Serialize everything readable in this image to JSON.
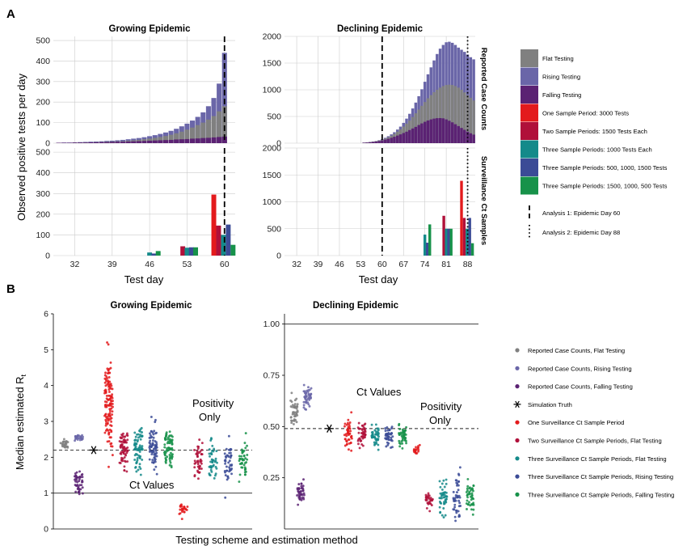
{
  "panel_labels": {
    "a": "A",
    "b": "B"
  },
  "titles": {
    "growing": "Growing Epidemic",
    "declining": "Declining Epidemic"
  },
  "strip_labels": {
    "top": "Reported Case Counts",
    "bottom": "Surveillance Ct Samples"
  },
  "axis_labels": {
    "a_y": "Observed positive tests per day",
    "a_x": "Test day",
    "b_y": "Median estimated R",
    "b_y_sub": "t",
    "b_x": "Testing scheme and estimation method"
  },
  "annotations": {
    "ct_values": "Ct Values",
    "positivity_line1": "Positivity",
    "positivity_line2": "Only"
  },
  "legend_a": {
    "items": [
      {
        "label": "Flat Testing",
        "color": "#808080"
      },
      {
        "label": "Rising Testing",
        "color": "#6a66a8"
      },
      {
        "label": "Falling Testing",
        "color": "#5b2273"
      },
      {
        "label": "One Sample Period: 3000 Tests",
        "color": "#e31a1c"
      },
      {
        "label": "Two Sample Periods: 1500 Tests Each",
        "color": "#b0103a"
      },
      {
        "label": "Three Sample Periods: 1000 Tests Each",
        "color": "#148a8a"
      },
      {
        "label": "Three Sample Periods: 500, 1000, 1500 Tests",
        "color": "#3b4b96"
      },
      {
        "label": "Three Sample Periods: 1500, 1000, 500 Tests",
        "color": "#17924a"
      }
    ],
    "lines": [
      {
        "label": "Analysis 1: Epidemic Day 60",
        "style": "dashed"
      },
      {
        "label": "Analysis 2: Epidemic Day 88",
        "style": "dotted"
      }
    ]
  },
  "legend_b": {
    "items": [
      {
        "label": "Reported Case Counts, Flat Testing",
        "color": "#808080",
        "marker": "dot"
      },
      {
        "label": "Reported Case Counts, Rising Testing",
        "color": "#6a66a8",
        "marker": "dot"
      },
      {
        "label": "Reported Case Counts, Falling Testing",
        "color": "#5b2273",
        "marker": "dot"
      },
      {
        "label": "Simulation Truth",
        "color": "#000000",
        "marker": "asterisk"
      },
      {
        "label": "One Surveillance Ct Sample Period",
        "color": "#e31a1c",
        "marker": "dot"
      },
      {
        "label": "Two Surveillance Ct Sample Periods, Flat Testing",
        "color": "#b0103a",
        "marker": "dot"
      },
      {
        "label": "Three Surveillance Ct Sample Periods, Flat Testing",
        "color": "#148a8a",
        "marker": "dot"
      },
      {
        "label": "Three Surveillance Ct Sample Periods, Rising Testing",
        "color": "#3b4b96",
        "marker": "dot"
      },
      {
        "label": "Three Surveillance Ct Sample Periods, Falling Testing",
        "color": "#17924a",
        "marker": "dot"
      }
    ]
  },
  "chart_data": [
    {
      "id": "A-growing-case-counts",
      "type": "bar",
      "title": "Growing Epidemic",
      "xlim": [
        28,
        62
      ],
      "ylim": [
        0,
        520
      ],
      "xticks": [
        32,
        39,
        46,
        53,
        60
      ],
      "yticks": [
        0,
        100,
        200,
        300,
        400,
        500
      ],
      "vline": {
        "x": 60,
        "style": "dashed"
      },
      "days": [
        29,
        30,
        31,
        32,
        33,
        34,
        35,
        36,
        37,
        38,
        39,
        40,
        41,
        42,
        43,
        44,
        45,
        46,
        47,
        48,
        49,
        50,
        51,
        52,
        53,
        54,
        55,
        56,
        57,
        58,
        59,
        60
      ],
      "series": [
        {
          "name": "Rising Testing",
          "values": [
            2,
            3,
            3,
            4,
            5,
            6,
            7,
            8,
            9,
            11,
            12,
            14,
            16,
            19,
            22,
            25,
            29,
            34,
            39,
            45,
            52,
            60,
            70,
            82,
            95,
            110,
            128,
            150,
            180,
            220,
            290,
            440
          ]
        },
        {
          "name": "Flat Testing",
          "values": [
            2,
            2,
            2,
            3,
            3,
            4,
            4,
            5,
            6,
            7,
            8,
            9,
            10,
            12,
            14,
            16,
            19,
            22,
            26,
            30,
            35,
            41,
            48,
            56,
            66,
            76,
            88,
            100,
            115,
            132,
            155,
            180
          ]
        },
        {
          "name": "Falling Testing",
          "values": [
            2,
            2,
            2,
            3,
            3,
            3,
            4,
            4,
            5,
            5,
            6,
            7,
            7,
            8,
            9,
            10,
            11,
            12,
            13,
            14,
            15,
            16,
            18,
            19,
            20,
            22,
            23,
            25,
            26,
            28,
            30,
            32
          ]
        }
      ]
    },
    {
      "id": "A-growing-ct-samples",
      "type": "bar",
      "xlim": [
        28,
        62
      ],
      "ylim": [
        0,
        520
      ],
      "xticks": [
        32,
        39,
        46,
        53,
        60
      ],
      "yticks": [
        0,
        100,
        200,
        300,
        400,
        500
      ],
      "xlabel": "Test day",
      "vline": {
        "x": 60,
        "style": "dashed"
      },
      "bars": [
        {
          "x": 46.0,
          "series": "Three Sample Periods: 1000 Tests Each",
          "value": 15
        },
        {
          "x": 46.8,
          "series": "Three Sample Periods: 500, 1000, 1500 Tests",
          "value": 10
        },
        {
          "x": 47.6,
          "series": "Three Sample Periods: 1500, 1000, 500 Tests",
          "value": 22
        },
        {
          "x": 52.2,
          "series": "Two Sample Periods: 1500 Tests Each",
          "value": 45
        },
        {
          "x": 53.0,
          "series": "Three Sample Periods: 1000 Tests Each",
          "value": 38
        },
        {
          "x": 53.8,
          "series": "Three Sample Periods: 500, 1000, 1500 Tests",
          "value": 40
        },
        {
          "x": 54.6,
          "series": "Three Sample Periods: 1500, 1000, 500 Tests",
          "value": 40
        },
        {
          "x": 58.0,
          "series": "One Sample Period: 3000 Tests",
          "value": 295
        },
        {
          "x": 58.9,
          "series": "Two Sample Periods: 1500 Tests Each",
          "value": 145
        },
        {
          "x": 59.8,
          "series": "Three Sample Periods: 1000 Tests Each",
          "value": 100
        },
        {
          "x": 60.7,
          "series": "Three Sample Periods: 500, 1000, 1500 Tests",
          "value": 150
        },
        {
          "x": 61.6,
          "series": "Three Sample Periods: 1500, 1000, 500 Tests",
          "value": 52
        }
      ]
    },
    {
      "id": "A-declining-case-counts",
      "type": "bar",
      "title": "Declining Epidemic",
      "xlim": [
        28,
        90.5
      ],
      "ylim": [
        0,
        2000
      ],
      "xticks": [
        32,
        39,
        46,
        53,
        60,
        67,
        74,
        81,
        88
      ],
      "yticks": [
        0,
        500,
        1000,
        1500,
        2000
      ],
      "vlines": [
        {
          "x": 60,
          "style": "dashed"
        },
        {
          "x": 88,
          "style": "dotted"
        }
      ],
      "strip": "Reported Case Counts",
      "days": [
        54,
        55,
        56,
        57,
        58,
        59,
        60,
        61,
        62,
        63,
        64,
        65,
        66,
        67,
        68,
        69,
        70,
        71,
        72,
        73,
        74,
        75,
        76,
        77,
        78,
        79,
        80,
        81,
        82,
        83,
        84,
        85,
        86,
        87,
        88,
        89,
        90
      ],
      "series": [
        {
          "name": "Rising Testing",
          "values": [
            10,
            15,
            22,
            30,
            40,
            55,
            75,
            100,
            130,
            165,
            205,
            255,
            310,
            380,
            460,
            550,
            650,
            760,
            880,
            1010,
            1150,
            1290,
            1420,
            1550,
            1670,
            1770,
            1840,
            1890,
            1900,
            1880,
            1840,
            1790,
            1750,
            1710,
            1660,
            1610,
            1570
          ]
        },
        {
          "name": "Flat Testing",
          "values": [
            10,
            14,
            20,
            28,
            38,
            50,
            65,
            85,
            110,
            140,
            175,
            215,
            260,
            310,
            365,
            425,
            490,
            560,
            630,
            700,
            770,
            840,
            900,
            955,
            1000,
            1040,
            1070,
            1090,
            1095,
            1090,
            1070,
            1040,
            1000,
            950,
            900,
            850,
            800
          ]
        },
        {
          "name": "Falling Testing",
          "values": [
            8,
            12,
            17,
            23,
            30,
            40,
            52,
            66,
            82,
            100,
            120,
            142,
            165,
            190,
            215,
            245,
            275,
            305,
            340,
            370,
            400,
            425,
            445,
            460,
            468,
            470,
            465,
            445,
            420,
            390,
            355,
            320,
            285,
            250,
            215,
            185,
            160
          ]
        }
      ]
    },
    {
      "id": "A-declining-ct-samples",
      "type": "bar",
      "xlim": [
        28,
        90.5
      ],
      "ylim": [
        0,
        2000
      ],
      "xticks": [
        32,
        39,
        46,
        53,
        60,
        67,
        74,
        81,
        88
      ],
      "yticks": [
        0,
        500,
        1000,
        1500,
        2000
      ],
      "xlabel": "Test day",
      "vlines": [
        {
          "x": 60,
          "style": "dashed"
        },
        {
          "x": 88,
          "style": "dotted"
        }
      ],
      "strip": "Surveillance Ct Samples",
      "bars": [
        {
          "x": 74.0,
          "series": "Three Sample Periods: 1000 Tests Each",
          "value": 390
        },
        {
          "x": 74.8,
          "series": "Three Sample Periods: 500, 1000, 1500 Tests",
          "value": 240
        },
        {
          "x": 75.6,
          "series": "Three Sample Periods: 1500, 1000, 500 Tests",
          "value": 580
        },
        {
          "x": 80.2,
          "series": "Two Sample Periods: 1500 Tests Each",
          "value": 740
        },
        {
          "x": 81.0,
          "series": "Three Sample Periods: 1000 Tests Each",
          "value": 500
        },
        {
          "x": 81.8,
          "series": "Three Sample Periods: 500, 1000, 1500 Tests",
          "value": 500
        },
        {
          "x": 82.6,
          "series": "Three Sample Periods: 1500, 1000, 500 Tests",
          "value": 500
        },
        {
          "x": 86.0,
          "series": "One Sample Period: 3000 Tests",
          "value": 1390
        },
        {
          "x": 86.9,
          "series": "Two Sample Periods: 1500 Tests Each",
          "value": 700
        },
        {
          "x": 87.8,
          "series": "Three Sample Periods: 1000 Tests Each",
          "value": 500
        },
        {
          "x": 88.7,
          "series": "Three Sample Periods: 500, 1000, 1500 Tests",
          "value": 700
        },
        {
          "x": 89.6,
          "series": "Three Sample Periods: 1500, 1000, 500 Tests",
          "value": 230
        }
      ]
    },
    {
      "id": "B-growing",
      "type": "scatter",
      "title": "Growing Epidemic",
      "ylim": [
        0,
        6
      ],
      "yticks": [
        0,
        1,
        2,
        3,
        4,
        5,
        6
      ],
      "hlines": [
        {
          "y": 2.2,
          "style": "dashed"
        },
        {
          "y": 1,
          "style": "solid"
        }
      ],
      "truth": {
        "x": 3,
        "y": 2.2
      },
      "groups": [
        {
          "x": 1,
          "series": "Reported Case Counts, Flat Testing",
          "center": 2.35,
          "spread": 0.18,
          "n": 25
        },
        {
          "x": 2,
          "series": "Reported Case Counts, Rising Testing",
          "center": 2.55,
          "spread": 0.15,
          "n": 25
        },
        {
          "x": 2,
          "series": "Reported Case Counts, Falling Testing",
          "center": 1.35,
          "spread": 0.6,
          "n": 45
        },
        {
          "x": 4,
          "series": "One Surveillance Ct Sample Period",
          "center": 3.5,
          "spread": 2.2,
          "n": 130
        },
        {
          "x": 5,
          "series": "Two Surveillance Ct Sample Periods, Flat Testing",
          "center": 2.25,
          "spread": 0.8,
          "n": 70
        },
        {
          "x": 6,
          "series": "Three Surveillance Ct Sample Periods, Flat Testing",
          "center": 2.3,
          "spread": 0.9,
          "n": 70
        },
        {
          "x": 7,
          "series": "Three Surveillance Ct Sample Periods, Rising Testing",
          "center": 2.3,
          "spread": 1.0,
          "n": 70
        },
        {
          "x": 8,
          "series": "Three Surveillance Ct Sample Periods, Falling Testing",
          "center": 2.25,
          "spread": 0.8,
          "n": 70
        },
        {
          "x": 9,
          "series": "One Surveillance Ct Sample Period",
          "center": 0.55,
          "spread": 0.3,
          "n": 25
        },
        {
          "x": 10,
          "series": "Two Surveillance Ct Sample Periods, Flat Testing",
          "center": 1.9,
          "spread": 0.7,
          "n": 45
        },
        {
          "x": 11,
          "series": "Three Surveillance Ct Sample Periods, Flat Testing",
          "center": 1.85,
          "spread": 1.0,
          "n": 45
        },
        {
          "x": 12,
          "series": "Three Surveillance Ct Sample Periods, Rising Testing",
          "center": 1.85,
          "spread": 1.1,
          "n": 45
        },
        {
          "x": 13,
          "series": "Three Surveillance Ct Sample Periods, Falling Testing",
          "center": 1.9,
          "spread": 0.9,
          "n": 45
        }
      ]
    },
    {
      "id": "B-declining",
      "type": "scatter",
      "title": "Declining Epidemic",
      "ylim": [
        0,
        1.05
      ],
      "yticks": [
        0.25,
        0.5,
        0.75,
        1.0
      ],
      "ytick_labels": [
        "0.25",
        "0.50",
        "0.75",
        "1.00"
      ],
      "hlines": [
        {
          "y": 0.49,
          "style": "dashed"
        },
        {
          "y": 1.0,
          "style": "solid"
        }
      ],
      "truth": {
        "x": 3.6,
        "y": 0.49
      },
      "groups": [
        {
          "x": 1,
          "series": "Reported Case Counts, Flat Testing",
          "center": 0.57,
          "spread": 0.1,
          "n": 45
        },
        {
          "x": 2,
          "series": "Reported Case Counts, Rising Testing",
          "center": 0.64,
          "spread": 0.1,
          "n": 45
        },
        {
          "x": 1.5,
          "series": "Reported Case Counts, Falling Testing",
          "center": 0.18,
          "spread": 0.09,
          "n": 40
        },
        {
          "x": 5,
          "series": "One Surveillance Ct Sample Period",
          "center": 0.46,
          "spread": 0.12,
          "n": 45
        },
        {
          "x": 6,
          "series": "Two Surveillance Ct Sample Periods, Flat Testing",
          "center": 0.455,
          "spread": 0.08,
          "n": 45
        },
        {
          "x": 7,
          "series": "Three Surveillance Ct Sample Periods, Flat Testing",
          "center": 0.455,
          "spread": 0.08,
          "n": 45
        },
        {
          "x": 8,
          "series": "Three Surveillance Ct Sample Periods, Rising Testing",
          "center": 0.455,
          "spread": 0.08,
          "n": 45
        },
        {
          "x": 9,
          "series": "Three Surveillance Ct Sample Periods, Falling Testing",
          "center": 0.455,
          "spread": 0.08,
          "n": 45
        },
        {
          "x": 10,
          "series": "One Surveillance Ct Sample Period",
          "center": 0.385,
          "spread": 0.04,
          "n": 20
        },
        {
          "x": 11,
          "series": "Two Surveillance Ct Sample Periods, Flat Testing",
          "center": 0.135,
          "spread": 0.06,
          "n": 30
        },
        {
          "x": 12,
          "series": "Three Surveillance Ct Sample Periods, Flat Testing",
          "center": 0.16,
          "spread": 0.16,
          "n": 45
        },
        {
          "x": 13,
          "series": "Three Surveillance Ct Sample Periods, Rising Testing",
          "center": 0.17,
          "spread": 0.17,
          "n": 45
        },
        {
          "x": 14,
          "series": "Three Surveillance Ct Sample Periods, Falling Testing",
          "center": 0.16,
          "spread": 0.16,
          "n": 45
        }
      ]
    }
  ]
}
